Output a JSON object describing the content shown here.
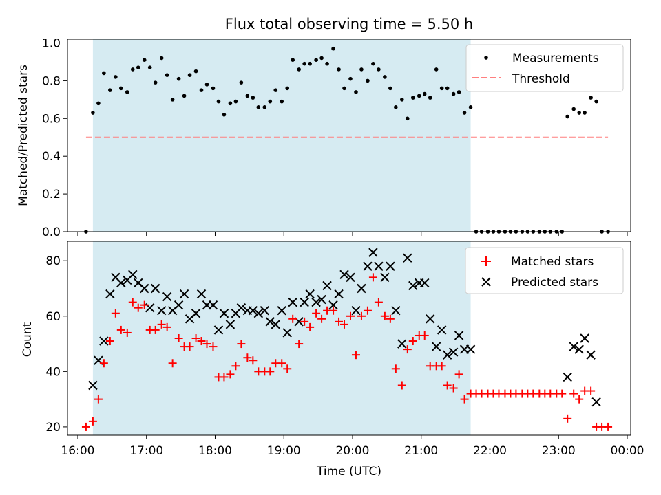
{
  "chart_data": [
    {
      "type": "scatter",
      "title": "Flux total observing time = 5.50 h",
      "ylabel": "Matched/Predicted stars",
      "xlabel": "",
      "xlim": [
        15.85,
        24.05
      ],
      "ylim": [
        0,
        1.02
      ],
      "yticks": [
        0.0,
        0.2,
        0.4,
        0.6,
        0.8,
        1.0
      ],
      "ytick_labels": [
        "0.0",
        "0.2",
        "0.4",
        "0.6",
        "0.8",
        "1.0"
      ],
      "shaded_interval": [
        16.22,
        21.72
      ],
      "shade_color": "#add8e6",
      "legend_position": "top-right",
      "threshold": {
        "name": "Threshold",
        "value": 0.5,
        "x_range": [
          16.12,
          23.72
        ],
        "color": "#ff7f7f"
      },
      "series": [
        {
          "name": "Measurements",
          "color": "#000000",
          "x": [
            16.12,
            16.22,
            16.3,
            16.38,
            16.47,
            16.55,
            16.63,
            16.72,
            16.8,
            16.88,
            16.97,
            17.05,
            17.13,
            17.22,
            17.3,
            17.38,
            17.47,
            17.55,
            17.63,
            17.72,
            17.8,
            17.88,
            17.97,
            18.05,
            18.13,
            18.22,
            18.3,
            18.38,
            18.47,
            18.55,
            18.63,
            18.72,
            18.8,
            18.88,
            18.97,
            19.05,
            19.13,
            19.22,
            19.3,
            19.38,
            19.47,
            19.55,
            19.63,
            19.72,
            19.8,
            19.88,
            19.97,
            20.05,
            20.13,
            20.22,
            20.3,
            20.38,
            20.47,
            20.55,
            20.63,
            20.72,
            20.8,
            20.88,
            20.97,
            21.05,
            21.13,
            21.22,
            21.3,
            21.38,
            21.47,
            21.55,
            21.63,
            21.72,
            21.8,
            21.88,
            21.97,
            22.05,
            22.13,
            22.22,
            22.3,
            22.38,
            22.47,
            22.55,
            22.63,
            22.72,
            22.8,
            22.88,
            22.97,
            23.05,
            23.13,
            23.22,
            23.3,
            23.38,
            23.47,
            23.55,
            23.63,
            23.72
          ],
          "y": [
            0.0,
            0.63,
            0.68,
            0.84,
            0.75,
            0.82,
            0.76,
            0.74,
            0.86,
            0.87,
            0.91,
            0.87,
            0.79,
            0.92,
            0.83,
            0.7,
            0.81,
            0.72,
            0.83,
            0.85,
            0.75,
            0.78,
            0.76,
            0.69,
            0.62,
            0.68,
            0.69,
            0.79,
            0.72,
            0.71,
            0.66,
            0.66,
            0.69,
            0.75,
            0.69,
            0.76,
            0.91,
            0.86,
            0.89,
            0.89,
            0.91,
            0.92,
            0.89,
            0.97,
            0.86,
            0.76,
            0.81,
            0.74,
            0.86,
            0.8,
            0.89,
            0.86,
            0.82,
            0.76,
            0.66,
            0.7,
            0.6,
            0.71,
            0.72,
            0.73,
            0.71,
            0.86,
            0.76,
            0.76,
            0.73,
            0.74,
            0.63,
            0.66,
            0.0,
            0.0,
            0.0,
            0.0,
            0.0,
            0.0,
            0.0,
            0.0,
            0.0,
            0.0,
            0.0,
            0.0,
            0.0,
            0.0,
            0.0,
            0.0,
            0.61,
            0.65,
            0.63,
            0.63,
            0.71,
            0.69,
            0.0,
            0.0
          ]
        }
      ]
    },
    {
      "type": "scatter",
      "title": "",
      "ylabel": "Count",
      "xlabel": "Time (UTC)",
      "xlim": [
        15.85,
        24.05
      ],
      "ylim": [
        17,
        87
      ],
      "yticks": [
        20,
        40,
        60,
        80
      ],
      "ytick_labels": [
        "20",
        "40",
        "60",
        "80"
      ],
      "xticks": [
        16,
        17,
        18,
        19,
        20,
        21,
        22,
        23,
        24
      ],
      "xtick_labels": [
        "16:00",
        "17:00",
        "18:00",
        "19:00",
        "20:00",
        "21:00",
        "22:00",
        "23:00",
        "00:00"
      ],
      "shaded_interval": [
        16.22,
        21.72
      ],
      "shade_color": "#add8e6",
      "legend_position": "top-right",
      "series": [
        {
          "name": "Matched stars",
          "marker": "+",
          "color": "#ff0000",
          "x": [
            16.12,
            16.22,
            16.3,
            16.38,
            16.47,
            16.55,
            16.63,
            16.72,
            16.8,
            16.88,
            16.97,
            17.05,
            17.13,
            17.22,
            17.3,
            17.38,
            17.47,
            17.55,
            17.63,
            17.72,
            17.8,
            17.88,
            17.97,
            18.05,
            18.13,
            18.22,
            18.3,
            18.38,
            18.47,
            18.55,
            18.63,
            18.72,
            18.8,
            18.88,
            18.97,
            19.05,
            19.13,
            19.22,
            19.3,
            19.38,
            19.47,
            19.55,
            19.63,
            19.72,
            19.8,
            19.88,
            19.97,
            20.05,
            20.13,
            20.22,
            20.3,
            20.38,
            20.47,
            20.55,
            20.63,
            20.72,
            20.8,
            20.88,
            20.97,
            21.05,
            21.13,
            21.22,
            21.3,
            21.38,
            21.47,
            21.55,
            21.63,
            21.72,
            21.8,
            21.88,
            21.97,
            22.05,
            22.13,
            22.22,
            22.3,
            22.38,
            22.47,
            22.55,
            22.63,
            22.72,
            22.8,
            22.88,
            22.97,
            23.05,
            23.13,
            23.22,
            23.3,
            23.38,
            23.47,
            23.55,
            23.63,
            23.72
          ],
          "y": [
            20,
            22,
            30,
            43,
            51,
            61,
            55,
            54,
            65,
            63,
            64,
            55,
            55,
            57,
            56,
            43,
            52,
            49,
            49,
            52,
            51,
            50,
            49,
            38,
            38,
            39,
            42,
            50,
            45,
            44,
            40,
            40,
            40,
            43,
            43,
            41,
            59,
            50,
            58,
            56,
            61,
            59,
            62,
            62,
            58,
            57,
            60,
            46,
            60,
            62,
            74,
            65,
            60,
            59,
            41,
            35,
            48,
            51,
            53,
            53,
            42,
            42,
            42,
            35,
            34,
            39,
            30,
            32,
            32,
            32,
            32,
            32,
            32,
            32,
            32,
            32,
            32,
            32,
            32,
            32,
            32,
            32,
            32,
            32,
            23,
            32,
            30,
            33,
            33,
            20,
            20,
            20
          ]
        },
        {
          "name": "Predicted stars",
          "marker": "x",
          "color": "#000000",
          "x": [
            16.22,
            16.3,
            16.38,
            16.47,
            16.55,
            16.63,
            16.72,
            16.8,
            16.88,
            16.97,
            17.05,
            17.13,
            17.22,
            17.3,
            17.38,
            17.47,
            17.55,
            17.63,
            17.72,
            17.8,
            17.88,
            17.97,
            18.05,
            18.13,
            18.22,
            18.3,
            18.38,
            18.47,
            18.55,
            18.63,
            18.72,
            18.8,
            18.88,
            18.97,
            19.05,
            19.13,
            19.22,
            19.3,
            19.38,
            19.47,
            19.55,
            19.63,
            19.72,
            19.8,
            19.88,
            19.97,
            20.05,
            20.13,
            20.22,
            20.3,
            20.38,
            20.47,
            20.55,
            20.63,
            20.72,
            20.8,
            20.88,
            20.97,
            21.05,
            21.13,
            21.22,
            21.3,
            21.38,
            21.47,
            21.55,
            21.63,
            21.72,
            23.13,
            23.22,
            23.3,
            23.38,
            23.47,
            23.55
          ],
          "y": [
            35,
            44,
            51,
            68,
            74,
            72,
            73,
            75,
            72,
            70,
            63,
            70,
            62,
            67,
            62,
            64,
            68,
            59,
            61,
            68,
            64,
            64,
            55,
            61,
            57,
            61,
            63,
            62,
            62,
            61,
            62,
            58,
            57,
            62,
            54,
            65,
            58,
            65,
            68,
            65,
            66,
            71,
            64,
            68,
            75,
            74,
            62,
            70,
            78,
            83,
            78,
            74,
            78,
            62,
            50,
            81,
            71,
            72,
            72,
            59,
            49,
            55,
            46,
            47,
            53,
            48,
            48,
            38,
            49,
            48,
            52,
            46,
            29
          ]
        }
      ]
    }
  ]
}
